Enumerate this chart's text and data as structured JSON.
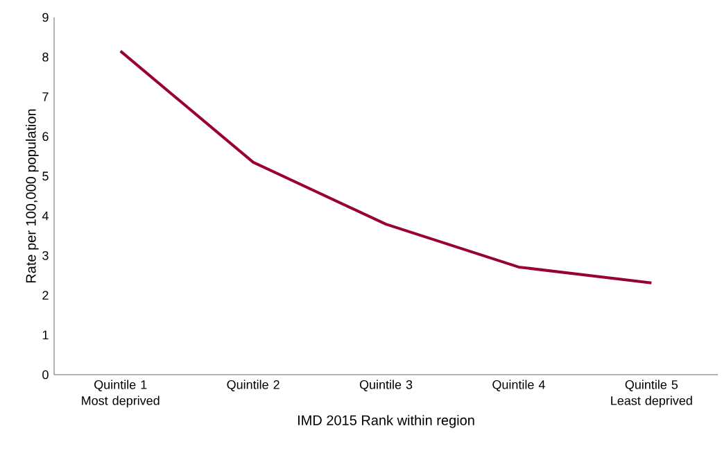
{
  "chart_data": {
    "type": "line",
    "xlabel": "IMD 2015 Rank within region",
    "ylabel": "Rate per 100,000 population",
    "categories": [
      "Quintile 1 Most deprived",
      "Quintile 2",
      "Quintile 3",
      "Quintile 4",
      "Quintile 5 Least deprived"
    ],
    "series": [
      {
        "color": "#990033",
        "values": [
          8.15,
          5.35,
          3.79,
          2.71,
          2.31
        ]
      }
    ],
    "ylim": [
      0,
      9
    ],
    "yticks": [
      0,
      1,
      2,
      3,
      4,
      5,
      6,
      7,
      8,
      9
    ],
    "marker": "none",
    "line_style": "solid"
  }
}
